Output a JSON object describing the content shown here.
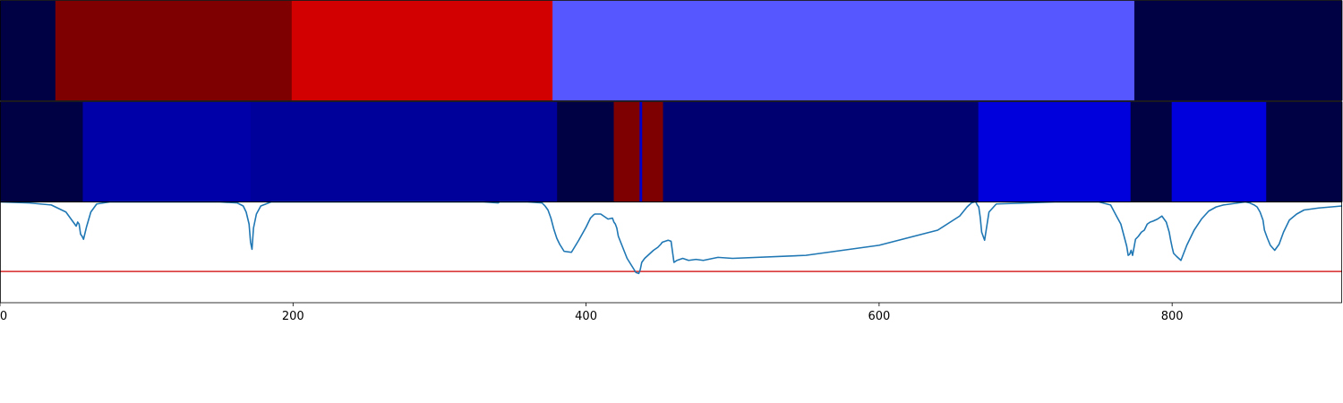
{
  "chart_data": {
    "type": "heatmap",
    "x_range": [
      0,
      916
    ],
    "x_ticks": [
      {
        "value": 0,
        "label": "0"
      },
      {
        "value": 200,
        "label": "200"
      },
      {
        "value": 400,
        "label": "400"
      },
      {
        "value": 600,
        "label": "600"
      },
      {
        "value": 800,
        "label": "800"
      }
    ],
    "segment_rows": [
      {
        "segments": [
          {
            "start": 0,
            "end": 37.8,
            "color": "#000045"
          },
          {
            "start": 37.8,
            "end": 199.1,
            "color": "#7f0000"
          },
          {
            "start": 199.1,
            "end": 377.1,
            "color": "#d20000"
          },
          {
            "start": 377.1,
            "end": 774.2,
            "color": "#5757ff"
          },
          {
            "start": 774.2,
            "end": 916,
            "color": "#000045"
          }
        ]
      },
      {
        "segments": [
          {
            "start": 0,
            "end": 56.5,
            "color": "#000045"
          },
          {
            "start": 56.5,
            "end": 171.0,
            "color": "#0000a8"
          },
          {
            "start": 171.0,
            "end": 380.2,
            "color": "#00009a"
          },
          {
            "start": 380.2,
            "end": 418.9,
            "color": "#000045"
          },
          {
            "start": 418.9,
            "end": 436.5,
            "color": "#7f0000"
          },
          {
            "start": 436.5,
            "end": 438.3,
            "color": "#0000c8"
          },
          {
            "start": 438.3,
            "end": 452.5,
            "color": "#7f0000"
          },
          {
            "start": 452.5,
            "end": 667.7,
            "color": "#000070"
          },
          {
            "start": 667.7,
            "end": 771.6,
            "color": "#0000dc"
          },
          {
            "start": 771.6,
            "end": 799.7,
            "color": "#000045"
          },
          {
            "start": 799.7,
            "end": 864.2,
            "color": "#0000dc"
          },
          {
            "start": 864.2,
            "end": 916,
            "color": "#000045"
          }
        ]
      }
    ],
    "line_panel": {
      "ylim": [
        0,
        1
      ],
      "threshold": 0.31,
      "threshold_color": "#d62728",
      "line_color": "#1f77b4",
      "x": [
        0,
        20,
        35,
        45,
        50,
        52,
        53,
        54,
        55,
        56,
        57,
        59,
        62,
        66,
        75,
        100,
        150,
        162,
        166,
        168,
        170,
        171,
        172,
        173,
        175,
        178,
        185,
        200,
        250,
        330,
        340,
        341,
        360,
        370,
        372,
        374,
        376,
        378,
        380,
        382,
        385,
        390,
        395,
        400,
        403,
        405,
        406,
        407,
        408,
        410,
        412,
        415,
        418,
        419,
        420,
        421,
        422,
        425,
        428,
        431,
        434,
        436,
        437,
        438,
        440,
        443,
        446,
        449,
        451,
        452,
        454,
        456,
        458,
        460,
        462,
        464,
        466,
        470,
        475,
        480,
        490,
        500,
        550,
        600,
        640,
        655,
        660,
        663,
        665,
        666,
        667,
        668,
        669,
        670,
        672,
        675,
        680,
        720,
        750,
        758,
        762,
        765,
        767,
        769,
        770,
        771,
        772,
        773,
        775,
        777,
        779,
        781,
        783,
        785,
        787,
        790,
        793,
        796,
        798,
        799,
        800,
        801,
        803,
        806,
        810,
        815,
        820,
        825,
        830,
        835,
        840,
        845,
        850,
        853,
        856,
        858,
        860,
        862,
        863,
        865,
        867,
        870,
        873,
        876,
        880,
        885,
        890,
        900,
        916
      ],
      "y": [
        1.0,
        0.99,
        0.97,
        0.9,
        0.8,
        0.76,
        0.8,
        0.78,
        0.68,
        0.66,
        0.63,
        0.75,
        0.9,
        0.98,
        1.0,
        1.0,
        1.0,
        0.99,
        0.96,
        0.9,
        0.78,
        0.6,
        0.53,
        0.74,
        0.88,
        0.96,
        1.0,
        1.0,
        1.0,
        1.0,
        0.99,
        1.0,
        1.0,
        0.99,
        0.96,
        0.92,
        0.84,
        0.73,
        0.64,
        0.58,
        0.51,
        0.5,
        0.62,
        0.75,
        0.84,
        0.87,
        0.88,
        0.88,
        0.88,
        0.88,
        0.86,
        0.83,
        0.84,
        0.8,
        0.78,
        0.74,
        0.66,
        0.55,
        0.44,
        0.37,
        0.3,
        0.29,
        0.33,
        0.4,
        0.44,
        0.48,
        0.52,
        0.55,
        0.58,
        0.6,
        0.61,
        0.62,
        0.61,
        0.4,
        0.42,
        0.43,
        0.44,
        0.42,
        0.43,
        0.42,
        0.45,
        0.44,
        0.47,
        0.57,
        0.72,
        0.86,
        0.95,
        0.99,
        1.0,
        1.0,
        0.97,
        0.95,
        0.85,
        0.7,
        0.62,
        0.9,
        0.98,
        1.0,
        1.0,
        0.97,
        0.86,
        0.78,
        0.67,
        0.56,
        0.47,
        0.48,
        0.52,
        0.47,
        0.63,
        0.66,
        0.7,
        0.72,
        0.78,
        0.8,
        0.81,
        0.83,
        0.86,
        0.8,
        0.7,
        0.62,
        0.55,
        0.49,
        0.46,
        0.42,
        0.57,
        0.72,
        0.83,
        0.91,
        0.95,
        0.97,
        0.98,
        0.99,
        1.0,
        0.99,
        0.97,
        0.95,
        0.9,
        0.82,
        0.72,
        0.64,
        0.57,
        0.52,
        0.58,
        0.7,
        0.82,
        0.88,
        0.92,
        0.94,
        0.96,
        0.97,
        0.98,
        0.99,
        0.99
      ]
    }
  }
}
